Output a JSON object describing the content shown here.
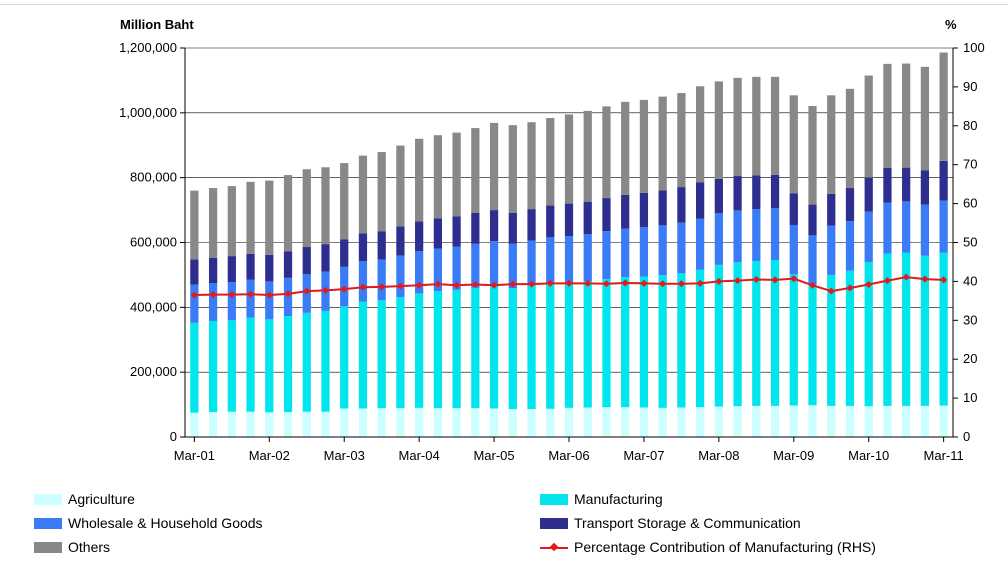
{
  "chart_data": {
    "type": "bar",
    "subtype": "stacked bar with secondary-axis line",
    "left_axis_unit": "Million Baht",
    "right_axis_unit": "%",
    "ylim": [
      0,
      1200000
    ],
    "y_ticks": [
      "0",
      "200,000",
      "400,000",
      "600,000",
      "800,000",
      "1,000,000",
      "1,200,000"
    ],
    "y2lim": [
      0,
      100
    ],
    "y2_ticks": [
      "0",
      "10",
      "20",
      "30",
      "40",
      "50",
      "60",
      "70",
      "80",
      "90",
      "100"
    ],
    "x_tick_labels": [
      "Mar-01",
      "Mar-02",
      "Mar-03",
      "Mar-04",
      "Mar-05",
      "Mar-06",
      "Mar-07",
      "Mar-08",
      "Mar-09",
      "Mar-10",
      "Mar-11"
    ],
    "grid": "horizontal gridlines",
    "legend_position": "bottom",
    "categories": [
      "Mar-01",
      "Jun-01",
      "Sep-01",
      "Dec-01",
      "Mar-02",
      "Jun-02",
      "Sep-02",
      "Dec-02",
      "Mar-03",
      "Jun-03",
      "Sep-03",
      "Dec-03",
      "Mar-04",
      "Jun-04",
      "Sep-04",
      "Dec-04",
      "Mar-05",
      "Jun-05",
      "Sep-05",
      "Dec-05",
      "Mar-06",
      "Jun-06",
      "Sep-06",
      "Dec-06",
      "Mar-07",
      "Jun-07",
      "Sep-07",
      "Dec-07",
      "Mar-08",
      "Jun-08",
      "Sep-08",
      "Dec-08",
      "Mar-09",
      "Jun-09",
      "Sep-09",
      "Dec-09",
      "Mar-10",
      "Jun-10",
      "Sep-10",
      "Dec-10",
      "Mar-11"
    ],
    "series": [
      {
        "name": "Agriculture",
        "color": "#ccffff",
        "values": [
          75000,
          77000,
          78000,
          78000,
          76000,
          77000,
          78000,
          78000,
          88000,
          88000,
          89000,
          89000,
          90000,
          89000,
          89000,
          89000,
          88000,
          86000,
          86000,
          87000,
          90000,
          91000,
          92000,
          92000,
          91000,
          90000,
          91000,
          92000,
          94000,
          95000,
          96000,
          96000,
          97000,
          98000,
          96000,
          96000,
          95000,
          96000,
          96000,
          96000,
          97000
        ]
      },
      {
        "name": "Manufacturing",
        "color": "#00e5ee",
        "values": [
          277000,
          281000,
          282000,
          290000,
          287000,
          296000,
          305000,
          311000,
          315000,
          330000,
          333000,
          343000,
          353000,
          361000,
          365000,
          371000,
          377000,
          373000,
          381000,
          387000,
          386000,
          389000,
          395000,
          401000,
          404000,
          409000,
          414000,
          424000,
          437000,
          444000,
          447000,
          450000,
          405000,
          372000,
          404000,
          417000,
          445000,
          470000,
          473000,
          463000,
          472000
        ]
      },
      {
        "name": "Wholesale & Household Goods",
        "color": "#3a7cf5",
        "values": [
          118000,
          117000,
          118000,
          117000,
          117000,
          118000,
          119000,
          121000,
          122000,
          124000,
          125000,
          128000,
          130000,
          131000,
          133000,
          136000,
          139000,
          137000,
          139000,
          142000,
          144000,
          146000,
          148000,
          150000,
          152000,
          154000,
          156000,
          158000,
          160000,
          160000,
          160000,
          160000,
          152000,
          152000,
          152000,
          153000,
          155000,
          157000,
          158000,
          158000,
          160000
        ]
      },
      {
        "name": "Transport Storage & Communication",
        "color": "#2e2e8e",
        "values": [
          78000,
          78000,
          80000,
          80000,
          82000,
          82000,
          84000,
          85000,
          85000,
          86000,
          87000,
          90000,
          92000,
          93000,
          94000,
          95000,
          96000,
          95000,
          97000,
          98000,
          100000,
          100000,
          102000,
          104000,
          106000,
          108000,
          110000,
          112000,
          105000,
          106000,
          104000,
          103000,
          98000,
          95000,
          98000,
          102000,
          105000,
          107000,
          104000,
          106000,
          123000
        ]
      },
      {
        "name": "Others",
        "color": "#888888",
        "values": [
          212000,
          215000,
          216000,
          222000,
          229000,
          235000,
          240000,
          237000,
          235000,
          240000,
          245000,
          249000,
          255000,
          257000,
          258000,
          262000,
          269000,
          271000,
          268000,
          270000,
          275000,
          280000,
          283000,
          287000,
          287000,
          289000,
          290000,
          296000,
          301000,
          303000,
          304000,
          302000,
          302000,
          304000,
          304000,
          306000,
          315000,
          321000,
          321000,
          319000,
          334000
        ]
      },
      {
        "name": "Percentage Contribution of Manufacturing (RHS)",
        "color": "#e31a1c",
        "axis": "right",
        "type": "line",
        "values": [
          36.5,
          36.6,
          36.6,
          36.7,
          36.5,
          36.8,
          37.5,
          37.7,
          38.0,
          38.5,
          38.6,
          38.8,
          39.0,
          39.3,
          39.0,
          39.2,
          39.0,
          39.3,
          39.3,
          39.5,
          39.5,
          39.5,
          39.4,
          39.6,
          39.5,
          39.4,
          39.4,
          39.5,
          40.0,
          40.2,
          40.5,
          40.4,
          40.7,
          39.0,
          37.5,
          38.3,
          39.2,
          40.2,
          41.1,
          40.6,
          40.4
        ]
      }
    ]
  }
}
